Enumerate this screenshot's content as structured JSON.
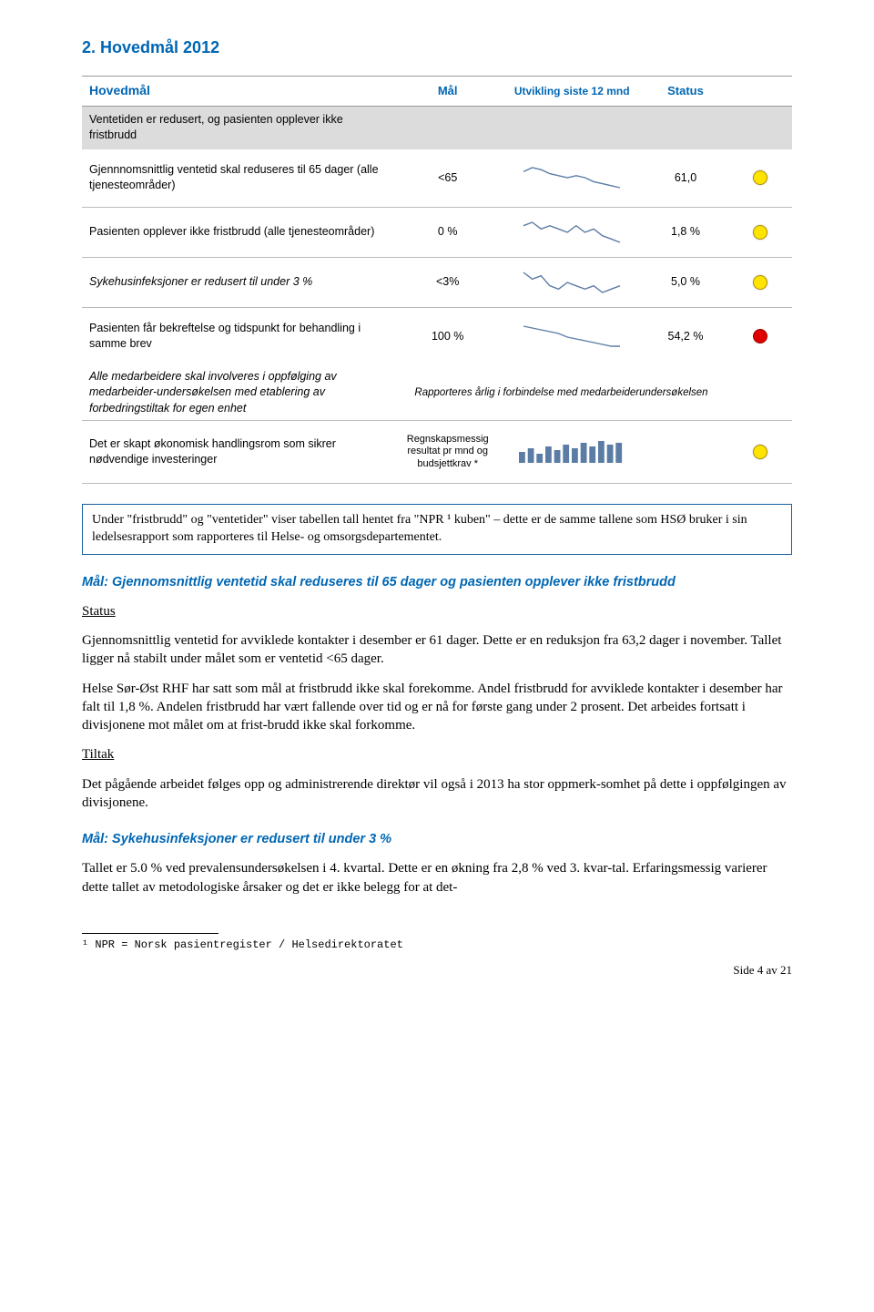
{
  "section_title": "2. Hovedmål 2012",
  "headers": {
    "hovedmal": "Hovedmål",
    "mal": "Mål",
    "utvikling": "Utvikling siste 12 mnd",
    "status": "Status"
  },
  "rows": {
    "r1_label": "Ventetiden er redusert, og pasienten opplever ikke fristbrudd",
    "r2_label": "Gjennnomsnittlig ventetid skal reduseres til 65 dager (alle tjenesteområder)",
    "r2_mal": "<65",
    "r2_status": "61,0",
    "r3_label": "Pasienten opplever ikke fristbrudd (alle tjenesteområder)",
    "r3_mal": "0 %",
    "r3_status": "1,8 %",
    "r4_label": "Sykehusinfeksjoner er redusert til under 3 %",
    "r4_mal": "<3%",
    "r4_status": "5,0 %",
    "r5_label": "Pasienten får bekreftelse og tidspunkt for behandling i samme brev",
    "r5_mal": "100 %",
    "r5_status": "54,2 %",
    "r6_label": "Alle medarbeidere skal involveres i oppfølging av medarbeider-undersøkelsen med etablering av forbedringstiltak for egen enhet",
    "r6_note": "Rapporteres årlig i forbindelse med medarbeiderundersøkelsen",
    "r7_label": "Det er skapt økonomisk handlingsrom som sikrer nødvendige investeringer",
    "r7_mal": "Regnskapsmessig resultat pr mnd og budsjettkrav *"
  },
  "sparklines": {
    "stroke": "#5b7ca5",
    "r2": [
      20,
      22,
      21,
      19,
      18,
      17,
      18,
      17,
      15,
      14,
      13,
      12
    ],
    "r3": [
      14,
      15,
      13,
      14,
      13,
      12,
      14,
      12,
      13,
      11,
      10,
      9
    ],
    "r4": [
      18,
      16,
      17,
      14,
      13,
      15,
      14,
      13,
      14,
      12,
      13,
      14
    ],
    "r5": [
      20,
      19,
      18,
      17,
      16,
      14,
      13,
      12,
      11,
      10,
      9,
      9
    ],
    "r7_bars": [
      6,
      8,
      5,
      9,
      7,
      10,
      8,
      11,
      9,
      12,
      10,
      11
    ]
  },
  "dots": {
    "r2": "yellow",
    "r3": "yellow",
    "r4": "yellow",
    "r5": "red",
    "r7": "yellow"
  },
  "note_box": "Under \"fristbrudd\" og \"ventetider\" viser tabellen tall hentet fra \"NPR ¹ kuben\" – dette er de samme tallene som HSØ bruker i sin ledelsesrapport som rapporteres til Helse- og omsorgsdepartementet.",
  "goal1_heading": "Mål: Gjennomsnittlig ventetid skal reduseres til 65 dager og pasienten opplever ikke fristbrudd",
  "status_label": "Status",
  "goal1_p1": "Gjennomsnittlig ventetid for avviklede kontakter i desember er 61 dager. Dette er en reduksjon fra 63,2 dager i november. Tallet ligger nå stabilt under målet som er ventetid <65 dager.",
  "goal1_p2": "Helse Sør-Øst RHF har satt som mål at fristbrudd ikke skal forekomme. Andel fristbrudd for avviklede kontakter i desember har falt til 1,8 %. Andelen fristbrudd har vært fallende over tid og er nå for første gang under 2 prosent. Det arbeides fortsatt i divisjonene mot målet om at frist-brudd ikke skal forkomme.",
  "tiltak_label": "Tiltak",
  "goal1_p3": "Det pågående arbeidet følges opp og administrerende direktør vil også i 2013 ha stor oppmerk-somhet på dette i oppfølgingen av divisjonene.",
  "goal2_heading": "Mål: Sykehusinfeksjoner er redusert til under 3 %",
  "goal2_p1": "Tallet er 5.0 % ved prevalensundersøkelsen i 4. kvartal. Dette er en økning fra 2,8 % ved 3. kvar-tal. Erfaringsmessig varierer dette tallet av metodologiske årsaker og det er ikke belegg for at det-",
  "footnote": "¹ NPR = Norsk pasientregister / Helsedirektoratet",
  "footer": "Side 4 av 21"
}
